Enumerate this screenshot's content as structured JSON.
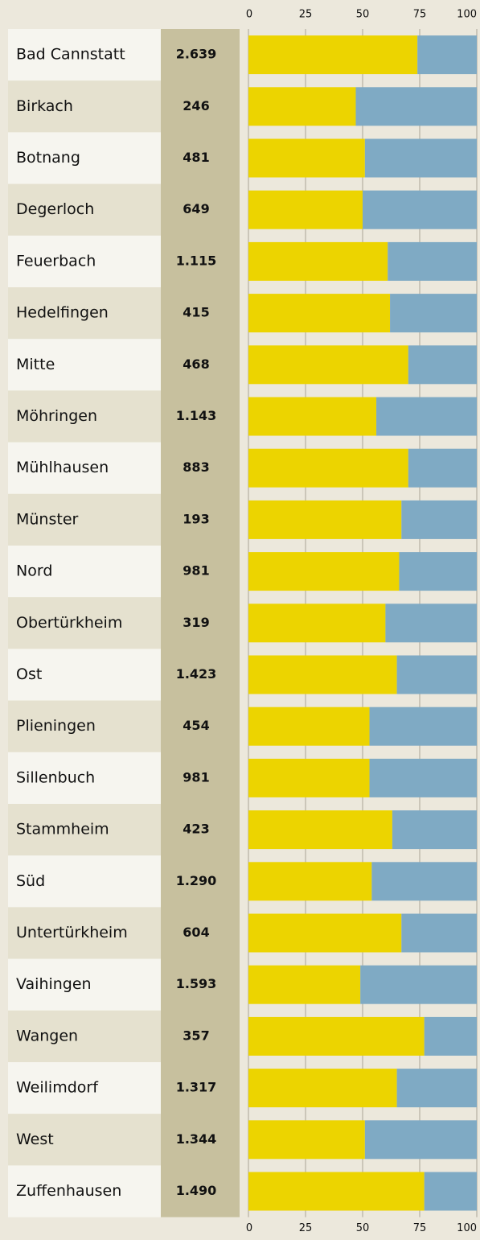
{
  "chart_data": {
    "type": "stacked_bar_100",
    "categories": [
      "Bad Cannstatt",
      "Birkach",
      "Botnang",
      "Degerloch",
      "Feuerbach",
      "Hedelfingen",
      "Mitte",
      "Möhringen",
      "Mühlhausen",
      "Münster",
      "Nord",
      "Obertürkheim",
      "Ost",
      "Plieningen",
      "Sillenbuch",
      "Stammheim",
      "Süd",
      "Untertürkheim",
      "Vaihingen",
      "Wangen",
      "Weilimdorf",
      "West",
      "Zuffenhausen"
    ],
    "totals": {
      "values": [
        2639,
        246,
        481,
        649,
        1115,
        415,
        468,
        1143,
        883,
        193,
        981,
        319,
        1423,
        454,
        981,
        423,
        1290,
        604,
        1593,
        357,
        1317,
        1344,
        1490
      ],
      "value_labels": [
        "2.639",
        "246",
        "481",
        "649",
        "1.115",
        "415",
        "468",
        "1.143",
        "883",
        "193",
        "981",
        "319",
        "1.423",
        "454",
        "981",
        "423",
        "1.290",
        "604",
        "1.593",
        "357",
        "1.317",
        "1.344",
        "1.490"
      ]
    },
    "series": [
      {
        "color": "#ecd400",
        "values": [
          74,
          47,
          51,
          50,
          61,
          62,
          70,
          56,
          70,
          67,
          66,
          60,
          65,
          53,
          53,
          63,
          54,
          67,
          49,
          77,
          65,
          51,
          77
        ]
      },
      {
        "color": "#7faac4",
        "values": [
          26,
          53,
          49,
          50,
          39,
          38,
          30,
          44,
          30,
          33,
          34,
          40,
          35,
          47,
          47,
          37,
          46,
          33,
          51,
          23,
          35,
          49,
          23
        ]
      }
    ],
    "xlim": [
      0,
      100
    ],
    "xticks": [
      0,
      25,
      50,
      75,
      100
    ],
    "grid": true
  }
}
